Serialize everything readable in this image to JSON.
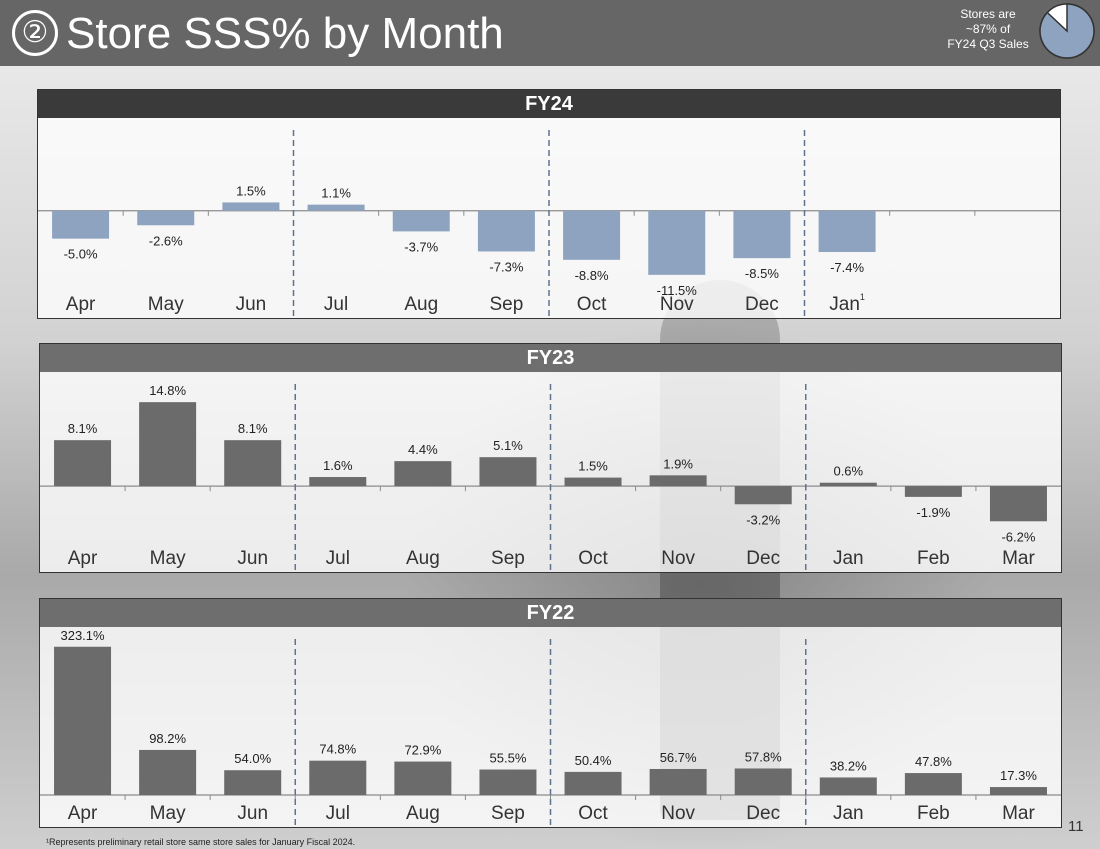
{
  "header": {
    "title_number": "②",
    "title": "Store SSS% by Month",
    "note_lines": [
      "Stores are",
      "~87% of",
      "FY24 Q3 Sales"
    ],
    "pie_share_percent": 87,
    "colors": {
      "bar": "#666666",
      "pie_fill": "#8ea3c0"
    }
  },
  "chart_data": [
    {
      "type": "bar",
      "title": "FY24",
      "categories": [
        "Apr",
        "May",
        "Jun",
        "Jul",
        "Aug",
        "Sep",
        "Oct",
        "Nov",
        "Dec",
        "Jan",
        "",
        ""
      ],
      "category_superscripts": [
        "",
        "",
        "",
        "",
        "",
        "",
        "",
        "",
        "",
        "1",
        "",
        ""
      ],
      "values": [
        -5.0,
        -2.6,
        1.5,
        1.1,
        -3.7,
        -7.3,
        -8.8,
        -11.5,
        -8.5,
        -7.4,
        null,
        null
      ],
      "labels": [
        "-5.0%",
        "-2.6%",
        "1.5%",
        "1.1%",
        "-3.7%",
        "-7.3%",
        "-8.8%",
        "-11.5%",
        "-8.5%",
        "-7.4%",
        "",
        ""
      ],
      "ylim": [
        -13.5,
        14.5
      ],
      "quarter_dividers_after": [
        3,
        6,
        9
      ],
      "bar_color": "#8ea3c0",
      "header_color": "#3a3a3a"
    },
    {
      "type": "bar",
      "title": "FY23",
      "categories": [
        "Apr",
        "May",
        "Jun",
        "Jul",
        "Aug",
        "Sep",
        "Oct",
        "Nov",
        "Dec",
        "Jan",
        "Feb",
        "Mar"
      ],
      "category_superscripts": [
        "",
        "",
        "",
        "",
        "",
        "",
        "",
        "",
        "",
        "",
        "",
        ""
      ],
      "values": [
        8.1,
        14.8,
        8.1,
        1.6,
        4.4,
        5.1,
        1.5,
        1.9,
        -3.2,
        0.6,
        -1.9,
        -6.2
      ],
      "labels": [
        "8.1%",
        "14.8%",
        "8.1%",
        "1.6%",
        "4.4%",
        "5.1%",
        "1.5%",
        "1.9%",
        "-3.2%",
        "0.6%",
        "-1.9%",
        "-6.2%"
      ],
      "ylim": [
        -9.5,
        18.0
      ],
      "quarter_dividers_after": [
        3,
        6,
        9
      ],
      "bar_color": "#6b6b6b",
      "header_color": "#6e6e6e"
    },
    {
      "type": "bar",
      "title": "FY22",
      "categories": [
        "Apr",
        "May",
        "Jun",
        "Jul",
        "Aug",
        "Sep",
        "Oct",
        "Nov",
        "Dec",
        "Jan",
        "Feb",
        "Mar"
      ],
      "category_superscripts": [
        "",
        "",
        "",
        "",
        "",
        "",
        "",
        "",
        "",
        "",
        "",
        ""
      ],
      "values": [
        323.1,
        98.2,
        54.0,
        74.8,
        72.9,
        55.5,
        50.4,
        56.7,
        57.8,
        38.2,
        47.8,
        17.3
      ],
      "labels": [
        "323.1%",
        "98.2%",
        "54.0%",
        "74.8%",
        "72.9%",
        "55.5%",
        "50.4%",
        "56.7%",
        "57.8%",
        "38.2%",
        "47.8%",
        "17.3%"
      ],
      "ylim": [
        0,
        340
      ],
      "quarter_dividers_after": [
        3,
        6,
        9
      ],
      "bar_color": "#6b6b6b",
      "header_color": "#6e6e6e"
    }
  ],
  "footer": {
    "page_number": "11",
    "footnote": "¹Represents preliminary retail store same store sales for January Fiscal 2024."
  }
}
